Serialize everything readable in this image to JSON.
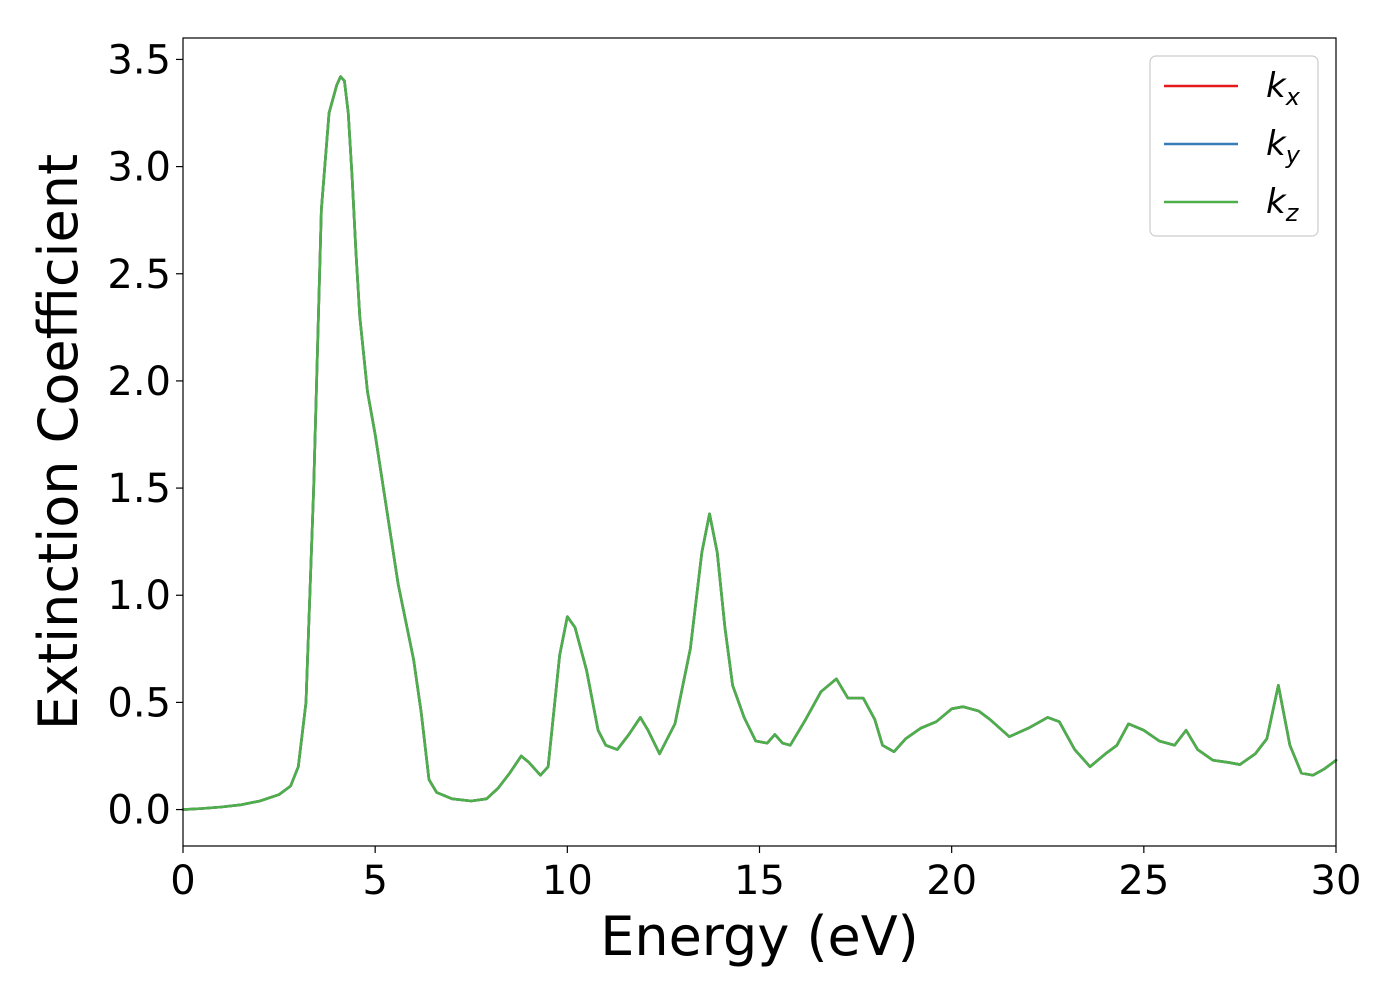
{
  "chart_data": {
    "type": "line",
    "title": "",
    "xlabel": "Energy (eV)",
    "ylabel": "Extinction Coefficient",
    "xlim": [
      0,
      30
    ],
    "ylim": [
      -0.17,
      3.6
    ],
    "xticks": [
      0,
      5,
      10,
      15,
      20,
      25,
      30
    ],
    "xtick_labels": [
      "0",
      "5",
      "10",
      "15",
      "20",
      "25",
      "30"
    ],
    "yticks": [
      0.0,
      0.5,
      1.0,
      1.5,
      2.0,
      2.5,
      3.0,
      3.5
    ],
    "ytick_labels": [
      "0.0",
      "0.5",
      "1.0",
      "1.5",
      "2.0",
      "2.5",
      "3.0",
      "3.5"
    ],
    "grid": false,
    "legend_position": "top-right",
    "x": [
      0,
      0.5,
      1.0,
      1.5,
      2.0,
      2.5,
      2.8,
      3.0,
      3.2,
      3.4,
      3.6,
      3.8,
      4.0,
      4.1,
      4.2,
      4.3,
      4.4,
      4.5,
      4.6,
      4.8,
      5.0,
      5.3,
      5.6,
      6.0,
      6.2,
      6.4,
      6.6,
      7.0,
      7.5,
      7.9,
      8.2,
      8.5,
      8.8,
      9.0,
      9.3,
      9.5,
      9.8,
      10.0,
      10.2,
      10.5,
      10.8,
      11.0,
      11.3,
      11.6,
      11.9,
      12.1,
      12.4,
      12.8,
      13.2,
      13.5,
      13.7,
      13.9,
      14.1,
      14.3,
      14.6,
      14.9,
      15.2,
      15.4,
      15.6,
      15.8,
      16.2,
      16.6,
      17.0,
      17.3,
      17.7,
      18.0,
      18.2,
      18.5,
      18.8,
      19.2,
      19.6,
      20.0,
      20.3,
      20.7,
      21.0,
      21.5,
      22.0,
      22.5,
      22.8,
      23.2,
      23.6,
      24.0,
      24.3,
      24.6,
      25.0,
      25.4,
      25.8,
      26.1,
      26.4,
      26.8,
      27.2,
      27.5,
      27.9,
      28.2,
      28.5,
      28.8,
      29.1,
      29.4,
      29.7,
      30.0
    ],
    "series": [
      {
        "name": "k_x",
        "color": "#e41a1c",
        "values": [
          0.0,
          0.005,
          0.012,
          0.022,
          0.04,
          0.07,
          0.11,
          0.2,
          0.5,
          1.5,
          2.8,
          3.25,
          3.38,
          3.42,
          3.4,
          3.25,
          2.95,
          2.6,
          2.3,
          1.95,
          1.75,
          1.4,
          1.05,
          0.7,
          0.45,
          0.14,
          0.08,
          0.05,
          0.04,
          0.05,
          0.1,
          0.17,
          0.25,
          0.22,
          0.16,
          0.2,
          0.72,
          0.9,
          0.85,
          0.65,
          0.37,
          0.3,
          0.28,
          0.35,
          0.43,
          0.37,
          0.26,
          0.4,
          0.75,
          1.2,
          1.38,
          1.2,
          0.85,
          0.58,
          0.43,
          0.32,
          0.31,
          0.35,
          0.31,
          0.3,
          0.42,
          0.55,
          0.61,
          0.52,
          0.52,
          0.42,
          0.3,
          0.27,
          0.33,
          0.38,
          0.41,
          0.47,
          0.48,
          0.46,
          0.42,
          0.34,
          0.38,
          0.43,
          0.41,
          0.28,
          0.2,
          0.26,
          0.3,
          0.4,
          0.37,
          0.32,
          0.3,
          0.37,
          0.28,
          0.23,
          0.22,
          0.21,
          0.26,
          0.33,
          0.58,
          0.3,
          0.17,
          0.16,
          0.19,
          0.23
        ]
      },
      {
        "name": "k_y",
        "color": "#377eb8",
        "values": [
          0.0,
          0.005,
          0.012,
          0.022,
          0.04,
          0.07,
          0.11,
          0.2,
          0.5,
          1.5,
          2.8,
          3.25,
          3.38,
          3.42,
          3.4,
          3.25,
          2.95,
          2.6,
          2.3,
          1.95,
          1.75,
          1.4,
          1.05,
          0.7,
          0.45,
          0.14,
          0.08,
          0.05,
          0.04,
          0.05,
          0.1,
          0.17,
          0.25,
          0.22,
          0.16,
          0.2,
          0.72,
          0.9,
          0.85,
          0.65,
          0.37,
          0.3,
          0.28,
          0.35,
          0.43,
          0.37,
          0.26,
          0.4,
          0.75,
          1.2,
          1.38,
          1.2,
          0.85,
          0.58,
          0.43,
          0.32,
          0.31,
          0.35,
          0.31,
          0.3,
          0.42,
          0.55,
          0.61,
          0.52,
          0.52,
          0.42,
          0.3,
          0.27,
          0.33,
          0.38,
          0.41,
          0.47,
          0.48,
          0.46,
          0.42,
          0.34,
          0.38,
          0.43,
          0.41,
          0.28,
          0.2,
          0.26,
          0.3,
          0.4,
          0.37,
          0.32,
          0.3,
          0.37,
          0.28,
          0.23,
          0.22,
          0.21,
          0.26,
          0.33,
          0.58,
          0.3,
          0.17,
          0.16,
          0.19,
          0.23
        ]
      },
      {
        "name": "k_z",
        "color": "#4daf4a",
        "values": [
          0.0,
          0.005,
          0.012,
          0.022,
          0.04,
          0.07,
          0.11,
          0.2,
          0.5,
          1.5,
          2.8,
          3.25,
          3.38,
          3.42,
          3.4,
          3.25,
          2.95,
          2.6,
          2.3,
          1.95,
          1.75,
          1.4,
          1.05,
          0.7,
          0.45,
          0.14,
          0.08,
          0.05,
          0.04,
          0.05,
          0.1,
          0.17,
          0.25,
          0.22,
          0.16,
          0.2,
          0.72,
          0.9,
          0.85,
          0.65,
          0.37,
          0.3,
          0.28,
          0.35,
          0.43,
          0.37,
          0.26,
          0.4,
          0.75,
          1.2,
          1.38,
          1.2,
          0.85,
          0.58,
          0.43,
          0.32,
          0.31,
          0.35,
          0.31,
          0.3,
          0.42,
          0.55,
          0.61,
          0.52,
          0.52,
          0.42,
          0.3,
          0.27,
          0.33,
          0.38,
          0.41,
          0.47,
          0.48,
          0.46,
          0.42,
          0.34,
          0.38,
          0.43,
          0.41,
          0.28,
          0.2,
          0.26,
          0.3,
          0.4,
          0.37,
          0.32,
          0.3,
          0.37,
          0.28,
          0.23,
          0.22,
          0.21,
          0.26,
          0.33,
          0.58,
          0.3,
          0.17,
          0.16,
          0.19,
          0.23
        ]
      }
    ],
    "legend": [
      {
        "main": "k",
        "sub": "x",
        "color": "#e41a1c"
      },
      {
        "main": "k",
        "sub": "y",
        "color": "#377eb8"
      },
      {
        "main": "k",
        "sub": "z",
        "color": "#4daf4a"
      }
    ]
  }
}
